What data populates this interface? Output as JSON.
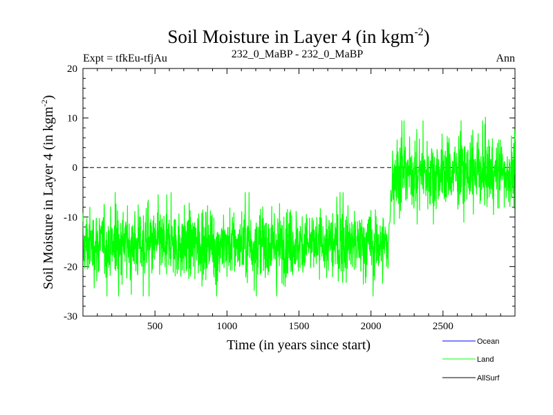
{
  "chart_data": {
    "type": "line",
    "title": "Soil Moisture in Layer 4 (in kgm",
    "title_sup": "-2",
    "title_close": ")",
    "left_label": "Expt = tfkEu-tfjAu",
    "center_label": "232_0_MaBP - 232_0_MaBP",
    "right_label": "Ann",
    "xlabel": "Time (in years since start)",
    "ylabel": "Soil Moisture in Layer 4 (in kgm",
    "ylabel_sup": "-2",
    "ylabel_close": ")",
    "xlim": [
      0,
      3000
    ],
    "ylim": [
      -30,
      20
    ],
    "xticks": [
      500,
      1000,
      1500,
      2000,
      2500
    ],
    "yticks": [
      -30,
      -20,
      -10,
      0,
      10,
      20
    ],
    "zero_line": true,
    "legend": [
      {
        "name": "Ocean",
        "color": "#0000ff"
      },
      {
        "name": "Land",
        "color": "#00ff00"
      },
      {
        "name": "AllSurf",
        "color": "#000000"
      }
    ],
    "series": [
      {
        "name": "Land",
        "color": "#00ff00",
        "segments": [
          {
            "x_start": 0,
            "x_end": 2120,
            "mean": -15.5,
            "std": 3.5,
            "min": -28,
            "max": -3
          },
          {
            "x_start": 2150,
            "x_end": 3000,
            "mean": -1,
            "std": 3.5,
            "min": -14,
            "max": 12
          }
        ]
      }
    ]
  }
}
